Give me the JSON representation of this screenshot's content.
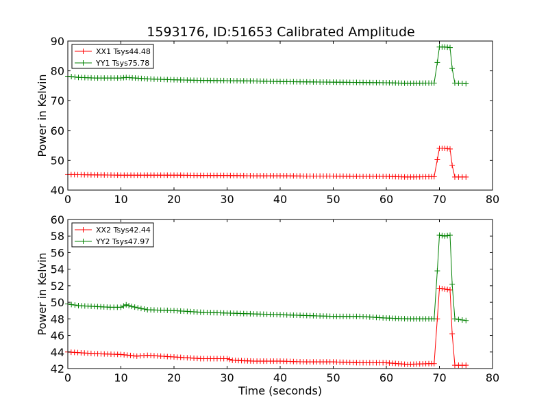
{
  "title": "1593176, ID:51653 Calibrated Amplitude",
  "chart_data": [
    {
      "type": "line",
      "xlabel": "",
      "ylabel": "Power in Kelvin",
      "xlim": [
        0,
        80
      ],
      "ylim": [
        40,
        90
      ],
      "xticks": [
        0,
        10,
        20,
        30,
        40,
        50,
        60,
        70,
        80
      ],
      "yticks": [
        40,
        50,
        60,
        70,
        80,
        90
      ],
      "grid": false,
      "legend_position": "top-left",
      "marker": "plus",
      "series": [
        {
          "name": "XX1 Tsys44.48",
          "color": "#ff0000",
          "x": [
            0,
            5,
            10,
            15,
            20,
            25,
            30,
            35,
            40,
            45,
            50,
            55,
            60,
            64,
            68,
            69,
            69.6,
            70,
            71,
            72,
            72.4,
            72.9,
            75
          ],
          "y": [
            45.2,
            45.1,
            45.0,
            45.0,
            45.0,
            44.9,
            44.9,
            44.8,
            44.8,
            44.7,
            44.7,
            44.6,
            44.6,
            44.4,
            44.5,
            44.5,
            50.2,
            54.0,
            54.0,
            53.8,
            48.3,
            44.4,
            44.4
          ]
        },
        {
          "name": "YY1 Tsys75.78",
          "color": "#008000",
          "x": [
            0,
            2,
            5,
            10,
            11,
            15,
            20,
            25,
            30,
            35,
            40,
            45,
            50,
            55,
            60,
            64,
            68,
            69,
            69.6,
            70,
            71,
            72,
            72.4,
            72.9,
            75
          ],
          "y": [
            78.2,
            77.8,
            77.6,
            77.6,
            77.8,
            77.3,
            77.0,
            76.8,
            76.7,
            76.6,
            76.4,
            76.3,
            76.2,
            76.1,
            76.0,
            75.8,
            75.9,
            75.9,
            82.8,
            88.0,
            88.0,
            87.8,
            80.8,
            75.9,
            75.7
          ]
        }
      ]
    },
    {
      "type": "line",
      "xlabel": "Time (seconds)",
      "ylabel": "Power in Kelvin",
      "xlim": [
        0,
        80
      ],
      "ylim": [
        42,
        60
      ],
      "xticks": [
        0,
        10,
        20,
        30,
        40,
        50,
        60,
        70,
        80
      ],
      "yticks": [
        42,
        44,
        46,
        48,
        50,
        52,
        54,
        56,
        58,
        60
      ],
      "grid": false,
      "legend_position": "top-left",
      "marker": "plus",
      "series": [
        {
          "name": "XX2 Tsys42.44",
          "color": "#ff0000",
          "x": [
            0,
            5,
            10,
            13,
            15,
            20,
            25,
            30,
            31,
            35,
            40,
            45,
            50,
            55,
            60,
            64,
            68,
            69,
            69.6,
            70,
            71,
            72,
            72.4,
            72.9,
            75
          ],
          "y": [
            44.0,
            43.8,
            43.7,
            43.5,
            43.6,
            43.4,
            43.2,
            43.2,
            43.0,
            42.9,
            42.9,
            42.8,
            42.8,
            42.7,
            42.7,
            42.5,
            42.6,
            42.6,
            48.0,
            51.7,
            51.6,
            51.5,
            46.2,
            42.4,
            42.4
          ]
        },
        {
          "name": "YY2 Tsys47.97",
          "color": "#008000",
          "x": [
            0,
            2,
            5,
            8,
            10,
            11,
            12,
            15,
            20,
            25,
            30,
            35,
            40,
            45,
            50,
            55,
            60,
            64,
            68,
            69,
            69.6,
            70,
            71,
            72,
            72.4,
            72.9,
            75
          ],
          "y": [
            49.8,
            49.6,
            49.5,
            49.4,
            49.4,
            49.7,
            49.5,
            49.1,
            49.0,
            48.8,
            48.7,
            48.6,
            48.5,
            48.4,
            48.3,
            48.3,
            48.1,
            48.0,
            48.0,
            48.0,
            53.8,
            58.1,
            58.0,
            58.1,
            52.2,
            48.0,
            47.8
          ]
        }
      ]
    }
  ]
}
